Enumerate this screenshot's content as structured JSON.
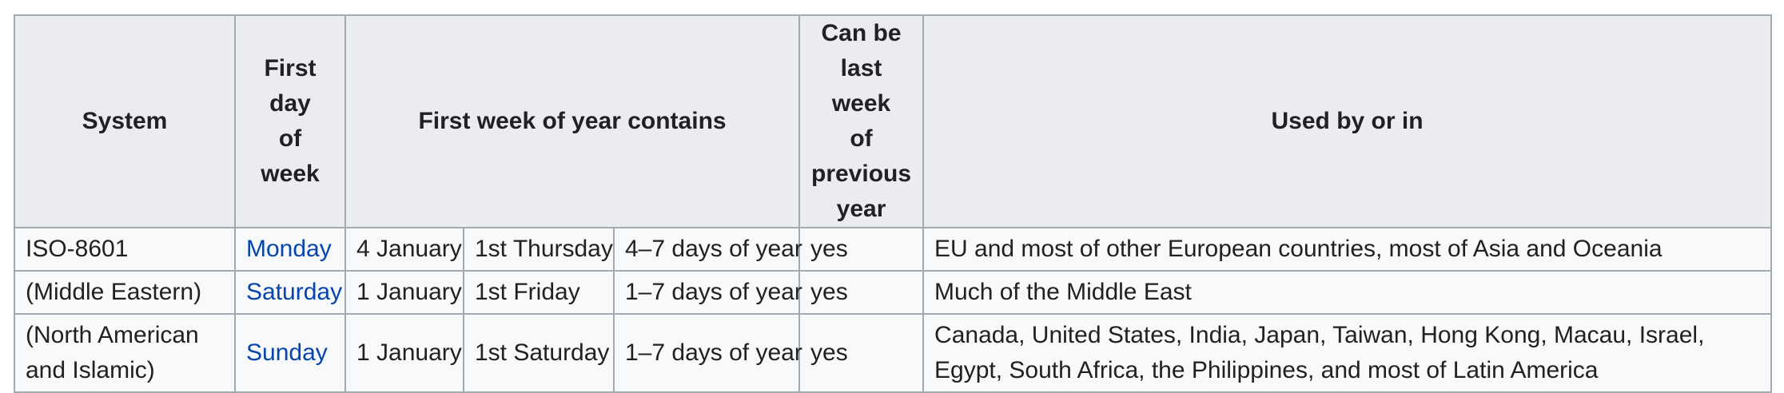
{
  "headers": {
    "system": "System",
    "first_day_line1": "First",
    "first_day_line2": "day",
    "first_day_line3": "of week",
    "first_week": "First week of year contains",
    "last_week_line1": "Can be",
    "last_week_line2": "last week",
    "last_week_line3": "of",
    "last_week_line4": "previous",
    "last_week_line5": "year",
    "used_by": "Used by or in"
  },
  "rows": [
    {
      "system": "ISO-8601",
      "system_line1": "",
      "system_line2": "",
      "first_day": "Monday",
      "contains_date": "4 January",
      "contains_weekday": "1st Thursday",
      "contains_days": "4–7 days of year",
      "last_week": "yes",
      "used_by": "EU and most of other European countries, most of Asia and Oceania"
    },
    {
      "system": "(Middle Eastern)",
      "first_day": "Saturday",
      "contains_date": "1 January",
      "contains_weekday": "1st Friday",
      "contains_days": "1–7 days of year",
      "last_week": "yes",
      "used_by": "Much of the Middle East"
    },
    {
      "system_line1": "(North American",
      "system_line2": "and Islamic)",
      "first_day": "Sunday",
      "contains_date": "1 January",
      "contains_weekday": "1st Saturday",
      "contains_days": "1–7 days of year",
      "last_week": "yes",
      "used_by": "Canada, United States, India, Japan, Taiwan, Hong Kong, Macau, Israel, Egypt, South Africa, the Philippines, and most of Latin America"
    }
  ],
  "colors": {
    "header_bg": "#eaecf0",
    "cell_bg": "#f8f9fa",
    "border": "#a2a9b1",
    "link": "#0645ad",
    "text": "#202122"
  }
}
